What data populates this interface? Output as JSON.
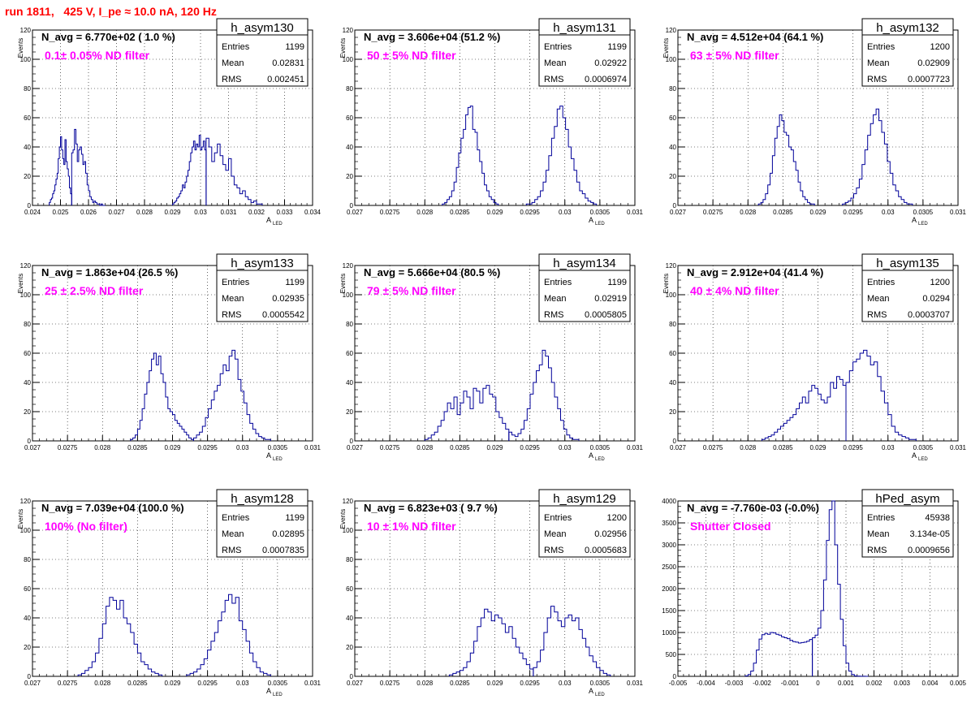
{
  "page_title": "run 1811,   425 V, I_pe ≈ 10.0 nA, 120 Hz",
  "stat_labels": {
    "entries": "Entries",
    "mean": "Mean",
    "rms": "RMS"
  },
  "chart_data": [
    {
      "type": "histogram",
      "name": "h_asym130",
      "navg": "N_avg = 6.770e+02 ( 1.0 %)",
      "label": "0.1± 0.05% ND filter",
      "xlabel": "A",
      "xlabel_sub": "LED",
      "ylabel": "Events",
      "xlim": [
        0.024,
        0.034
      ],
      "ylim": [
        0,
        120
      ],
      "xticks": [
        "0.024",
        "0.025",
        "0.026",
        "0.027",
        "0.028",
        "0.029",
        "0.03",
        "0.031",
        "0.032",
        "0.033",
        "0.034"
      ],
      "yticks": [
        "0",
        "20",
        "40",
        "60",
        "80",
        "100",
        "120"
      ],
      "stats": {
        "entries": "1199",
        "mean": "0.02831",
        "rms": "0.002451"
      },
      "bins": [
        {
          "x0": 0.0246,
          "x1": 0.0254,
          "values": [
            2,
            4,
            5,
            8,
            10,
            14,
            18,
            22,
            32,
            40,
            47,
            38,
            32,
            28,
            45,
            30,
            25,
            20,
            12,
            8
          ]
        },
        {
          "x0": 0.0254,
          "x1": 0.0266,
          "values": [
            36,
            38,
            52,
            42,
            30,
            38,
            40,
            35,
            28,
            30,
            22,
            14,
            10,
            6,
            4,
            2,
            3,
            2,
            1,
            1,
            0,
            1,
            0,
            0
          ]
        },
        {
          "x0": 0.029,
          "x1": 0.0302,
          "values": [
            1,
            2,
            3,
            5,
            6,
            8,
            10,
            14,
            12,
            16,
            20,
            24,
            30,
            36,
            40,
            44,
            38,
            42,
            40,
            48,
            38,
            40,
            44,
            38
          ]
        },
        {
          "x0": 0.0302,
          "x1": 0.0322,
          "values": [
            46,
            40,
            30,
            36,
            42,
            34,
            28,
            24,
            32,
            20,
            14,
            12,
            8,
            10,
            6,
            4,
            2,
            3,
            1,
            1
          ]
        }
      ]
    },
    {
      "type": "histogram",
      "name": "h_asym131",
      "navg": "N_avg = 3.606e+04 (51.2 %)",
      "label": "50 ± 5% ND filter",
      "xlabel": "A",
      "xlabel_sub": "LED",
      "ylabel": "Events",
      "xlim": [
        0.027,
        0.031
      ],
      "ylim": [
        0,
        120
      ],
      "xticks": [
        "0.027",
        "0.0275",
        "0.028",
        "0.0285",
        "0.029",
        "0.0295",
        "0.03",
        "0.0305",
        "0.031"
      ],
      "yticks": [
        "0",
        "20",
        "40",
        "60",
        "80",
        "100",
        "120"
      ],
      "stats": {
        "entries": "1199",
        "mean": "0.02922",
        "rms": "0.0006974"
      },
      "bins": [
        {
          "x0": 0.02825,
          "x1": 0.02905,
          "values": [
            1,
            2,
            4,
            6,
            10,
            16,
            26,
            36,
            46,
            52,
            62,
            67,
            68,
            52,
            50,
            38,
            30,
            22,
            14,
            10,
            6,
            4,
            2,
            1
          ]
        },
        {
          "x0": 0.02945,
          "x1": 0.03045,
          "values": [
            1,
            1,
            2,
            4,
            6,
            10,
            16,
            24,
            34,
            46,
            54,
            66,
            68,
            60,
            52,
            40,
            32,
            24,
            16,
            10,
            8,
            5,
            3,
            2,
            1
          ]
        }
      ]
    },
    {
      "type": "histogram",
      "name": "h_asym132",
      "navg": "N_avg = 4.512e+04 (64.1 %)",
      "label": "63 ± 5% ND filter",
      "xlabel": "A",
      "xlabel_sub": "LED",
      "ylabel": "Events",
      "xlim": [
        0.027,
        0.031
      ],
      "ylim": [
        0,
        120
      ],
      "xticks": [
        "0.027",
        "0.0275",
        "0.028",
        "0.0285",
        "0.029",
        "0.0295",
        "0.03",
        "0.0305",
        "0.031"
      ],
      "yticks": [
        "0",
        "20",
        "40",
        "60",
        "80",
        "100",
        "120"
      ],
      "stats": {
        "entries": "1200",
        "mean": "0.02909",
        "rms": "0.0007723"
      },
      "bins": [
        {
          "x0": 0.02815,
          "x1": 0.02895,
          "values": [
            1,
            2,
            4,
            8,
            14,
            22,
            34,
            46,
            54,
            62,
            58,
            50,
            48,
            40,
            38,
            30,
            24,
            16,
            10,
            6,
            4,
            2,
            1,
            1
          ]
        },
        {
          "x0": 0.02935,
          "x1": 0.03035,
          "values": [
            1,
            2,
            3,
            5,
            8,
            12,
            18,
            28,
            38,
            48,
            56,
            62,
            66,
            58,
            50,
            42,
            30,
            22,
            14,
            10,
            6,
            4,
            2,
            1,
            1
          ]
        }
      ]
    },
    {
      "type": "histogram",
      "name": "h_asym133",
      "navg": "N_avg = 1.863e+04 (26.5 %)",
      "label": "25 ± 2.5% ND filter",
      "xlabel": "A",
      "xlabel_sub": "LED",
      "ylabel": "Events",
      "xlim": [
        0.027,
        0.031
      ],
      "ylim": [
        0,
        120
      ],
      "xticks": [
        "0.027",
        "0.0275",
        "0.028",
        "0.0285",
        "0.029",
        "0.0295",
        "0.03",
        "0.0305",
        "0.031"
      ],
      "yticks": [
        "0",
        "20",
        "40",
        "60",
        "80",
        "100",
        "120"
      ],
      "stats": {
        "entries": "1199",
        "mean": "0.02935",
        "rms": "0.0005542"
      },
      "bins": [
        {
          "x0": 0.0284,
          "x1": 0.0293,
          "values": [
            1,
            2,
            4,
            8,
            14,
            22,
            32,
            40,
            48,
            56,
            60,
            52,
            58,
            46,
            40,
            30,
            22,
            20,
            18,
            14,
            12,
            10,
            8,
            6,
            4,
            2,
            1
          ]
        },
        {
          "x0": 0.0293,
          "x1": 0.0304,
          "values": [
            2,
            4,
            6,
            10,
            16,
            22,
            28,
            34,
            38,
            46,
            52,
            48,
            58,
            62,
            56,
            42,
            34,
            26,
            18,
            12,
            8,
            5,
            3,
            2,
            1,
            1
          ]
        }
      ]
    },
    {
      "type": "histogram",
      "name": "h_asym134",
      "navg": "N_avg = 5.666e+04 (80.5 %)",
      "label": "79 ± 5% ND filter",
      "xlabel": "A",
      "xlabel_sub": "LED",
      "ylabel": "Events",
      "xlim": [
        0.027,
        0.031
      ],
      "ylim": [
        0,
        120
      ],
      "xticks": [
        "0.027",
        "0.0275",
        "0.028",
        "0.0285",
        "0.029",
        "0.0295",
        "0.03",
        "0.0305",
        "0.031"
      ],
      "yticks": [
        "0",
        "20",
        "40",
        "60",
        "80",
        "100",
        "120"
      ],
      "stats": {
        "entries": "1199",
        "mean": "0.02919",
        "rms": "0.0005805"
      },
      "bins": [
        {
          "x0": 0.028,
          "x1": 0.0292,
          "values": [
            1,
            2,
            4,
            6,
            10,
            14,
            20,
            26,
            22,
            30,
            18,
            26,
            34,
            30,
            22,
            36,
            34,
            26,
            36,
            38,
            32,
            30,
            20,
            16,
            12,
            8
          ]
        },
        {
          "x0": 0.0292,
          "x1": 0.0302,
          "values": [
            6,
            4,
            3,
            5,
            8,
            14,
            22,
            32,
            40,
            48,
            52,
            62,
            58,
            50,
            40,
            30,
            22,
            14,
            8,
            4,
            2,
            1,
            1
          ]
        }
      ]
    },
    {
      "type": "histogram",
      "name": "h_asym135",
      "navg": "N_avg = 2.912e+04 (41.4 %)",
      "label": "40 ± 4% ND filter",
      "xlabel": "A",
      "xlabel_sub": "LED",
      "ylabel": "Events",
      "xlim": [
        0.027,
        0.031
      ],
      "ylim": [
        0,
        120
      ],
      "xticks": [
        "0.027",
        "0.0275",
        "0.028",
        "0.0285",
        "0.029",
        "0.0295",
        "0.03",
        "0.0305",
        "0.031"
      ],
      "yticks": [
        "0",
        "20",
        "40",
        "60",
        "80",
        "100",
        "120"
      ],
      "stats": {
        "entries": "1200",
        "mean": "0.0294",
        "rms": "0.0003707"
      },
      "bins": [
        {
          "x0": 0.0282,
          "x1": 0.0294,
          "values": [
            1,
            2,
            3,
            4,
            6,
            8,
            10,
            12,
            14,
            16,
            18,
            22,
            26,
            30,
            26,
            34,
            38,
            36,
            32,
            28,
            26,
            30,
            40,
            36,
            44,
            42,
            38
          ]
        },
        {
          "x0": 0.0294,
          "x1": 0.0304,
          "values": [
            40,
            48,
            54,
            56,
            60,
            62,
            58,
            52,
            54,
            44,
            34,
            26,
            18,
            10,
            6,
            4,
            3,
            2,
            1,
            1
          ]
        }
      ]
    },
    {
      "type": "histogram",
      "name": "h_asym128",
      "navg": "N_avg = 7.039e+04 (100.0 %)",
      "label": "100% (No filter)",
      "xlabel": "A",
      "xlabel_sub": "LED",
      "ylabel": "Events",
      "xlim": [
        0.027,
        0.031
      ],
      "ylim": [
        0,
        120
      ],
      "xticks": [
        "0.027",
        "0.0275",
        "0.028",
        "0.0285",
        "0.029",
        "0.0295",
        "0.03",
        "0.0305",
        "0.031"
      ],
      "yticks": [
        "0",
        "20",
        "40",
        "60",
        "80",
        "100",
        "120"
      ],
      "stats": {
        "entries": "1199",
        "mean": "0.02895",
        "rms": "0.0007835"
      },
      "bins": [
        {
          "x0": 0.02765,
          "x1": 0.02885,
          "values": [
            1,
            2,
            4,
            6,
            10,
            16,
            26,
            36,
            48,
            54,
            52,
            46,
            52,
            40,
            36,
            30,
            22,
            16,
            10,
            8,
            5,
            3,
            2,
            1
          ]
        },
        {
          "x0": 0.0292,
          "x1": 0.0304,
          "values": [
            1,
            2,
            3,
            5,
            8,
            12,
            18,
            24,
            30,
            38,
            44,
            52,
            56,
            50,
            54,
            38,
            32,
            24,
            16,
            10,
            6,
            3,
            2,
            1
          ]
        }
      ]
    },
    {
      "type": "histogram",
      "name": "h_asym129",
      "navg": "N_avg = 6.823e+03 ( 9.7 %)",
      "label": "10 ± 1% ND filter",
      "xlabel": "A",
      "xlabel_sub": "LED",
      "ylabel": "Events",
      "xlim": [
        0.027,
        0.031
      ],
      "ylim": [
        0,
        120
      ],
      "xticks": [
        "0.027",
        "0.0275",
        "0.028",
        "0.0285",
        "0.029",
        "0.0295",
        "0.03",
        "0.0305",
        "0.031"
      ],
      "yticks": [
        "0",
        "20",
        "40",
        "60",
        "80",
        "100",
        "120"
      ],
      "stats": {
        "entries": "1200",
        "mean": "0.02956",
        "rms": "0.0005683"
      },
      "bins": [
        {
          "x0": 0.02835,
          "x1": 0.02955,
          "values": [
            1,
            2,
            3,
            4,
            6,
            10,
            16,
            24,
            34,
            40,
            46,
            44,
            38,
            42,
            40,
            36,
            30,
            34,
            26,
            20,
            16,
            12,
            8,
            5
          ]
        },
        {
          "x0": 0.02955,
          "x1": 0.03065,
          "values": [
            6,
            10,
            18,
            30,
            40,
            48,
            44,
            38,
            34,
            40,
            42,
            38,
            40,
            32,
            26,
            20,
            14,
            10,
            6,
            4,
            2,
            1
          ]
        }
      ]
    },
    {
      "type": "histogram",
      "name": "hPed_asym",
      "navg": "N_avg = -7.760e-03 (-0.0%)",
      "label": "Shutter Closed",
      "xlabel": "",
      "xlabel_sub": "",
      "ylabel": "",
      "xlim": [
        -0.005,
        0.005
      ],
      "ylim": [
        0,
        4000
      ],
      "xticks": [
        "-0.005",
        "-0.004",
        "-0.003",
        "-0.002",
        "-0.001",
        "0",
        "0.001",
        "0.002",
        "0.003",
        "0.004",
        "0.005"
      ],
      "yticks": [
        "0",
        "500",
        "1000",
        "1500",
        "2000",
        "2500",
        "3000",
        "3500",
        "4000"
      ],
      "stats": {
        "entries": "45938",
        "mean": "3.134e-05",
        "rms": "0.0009656"
      },
      "bins": [
        {
          "x0": -0.0026,
          "x1": -0.0002,
          "values": [
            10,
            40,
            120,
            300,
            600,
            850,
            950,
            980,
            960,
            1000,
            990,
            960,
            940,
            900,
            880,
            860,
            820,
            790,
            780,
            760,
            770,
            780,
            800,
            840
          ]
        },
        {
          "x0": -0.0002,
          "x1": 0.0018,
          "values": [
            880,
            940,
            1100,
            1500,
            2200,
            3100,
            3800,
            4000,
            3000,
            2100,
            1300,
            700,
            300,
            120,
            40,
            10,
            4,
            2,
            1,
            0
          ]
        }
      ]
    }
  ]
}
